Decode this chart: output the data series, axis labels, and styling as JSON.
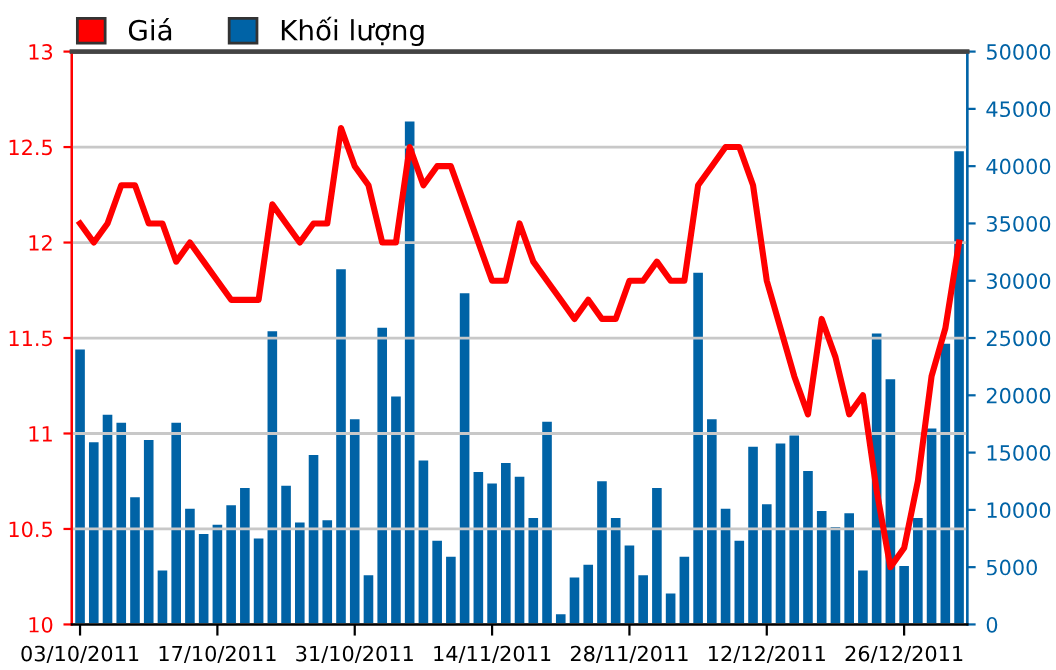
{
  "chart_data": {
    "type": "bar",
    "categories": [
      "03/10/2011",
      null,
      null,
      null,
      null,
      null,
      null,
      null,
      null,
      null,
      "17/10/2011",
      null,
      null,
      null,
      null,
      null,
      null,
      null,
      null,
      null,
      "31/10/2011",
      null,
      null,
      null,
      null,
      null,
      null,
      null,
      null,
      null,
      "14/11/2011",
      null,
      null,
      null,
      null,
      null,
      null,
      null,
      null,
      null,
      "28/11/2011",
      null,
      null,
      null,
      null,
      null,
      null,
      null,
      null,
      null,
      "12/12/2011",
      null,
      null,
      null,
      null,
      null,
      null,
      null,
      null,
      null,
      "26/12/2011",
      null,
      null,
      null,
      null
    ],
    "series": [
      {
        "name": "Giá",
        "type": "line",
        "color": "#ff0000",
        "values": [
          12.1,
          12.0,
          12.1,
          12.3,
          12.3,
          12.1,
          12.1,
          11.9,
          12.0,
          11.9,
          11.8,
          11.7,
          11.7,
          11.7,
          12.2,
          12.1,
          12.0,
          12.1,
          12.1,
          12.6,
          12.4,
          12.3,
          12.0,
          12.0,
          12.5,
          12.3,
          12.4,
          12.4,
          12.2,
          12.0,
          11.8,
          11.8,
          12.1,
          11.9,
          11.8,
          11.7,
          11.6,
          11.7,
          11.6,
          11.6,
          11.8,
          11.8,
          11.9,
          11.8,
          11.8,
          12.3,
          12.4,
          12.5,
          12.5,
          12.3,
          11.8,
          11.55,
          11.3,
          11.1,
          11.6,
          11.4,
          11.1,
          11.2,
          10.7,
          10.3,
          10.4,
          10.75,
          11.3,
          11.55,
          12.0
        ]
      },
      {
        "name": "Khối lượng",
        "axis": "y2",
        "color": "#0063a6",
        "values": [
          24000,
          15900,
          18300,
          17600,
          11100,
          16100,
          4700,
          17600,
          10100,
          7900,
          8700,
          10400,
          11900,
          7500,
          25600,
          12100,
          8900,
          14800,
          9100,
          31000,
          17900,
          4300,
          25900,
          19900,
          43900,
          14300,
          7300,
          5900,
          28900,
          13300,
          12300,
          14100,
          12900,
          9300,
          17700,
          900,
          4100,
          5200,
          12500,
          9300,
          6900,
          4300,
          11900,
          2700,
          5900,
          30700,
          17900,
          10100,
          7300,
          15500,
          10500,
          15800,
          16500,
          13400,
          9900,
          8500,
          9700,
          4700,
          25400,
          21400,
          5100,
          9300,
          17100,
          24500,
          41300
        ]
      }
    ],
    "ylim": [
      10,
      13
    ],
    "yticks": [
      10,
      10.5,
      11,
      11.5,
      12,
      12.5,
      13
    ],
    "y2lim": [
      0,
      50000
    ],
    "y2ticks": [
      0,
      5000,
      10000,
      15000,
      20000,
      25000,
      30000,
      35000,
      40000,
      45000,
      50000
    ],
    "grid": "y",
    "legend": "top left"
  }
}
